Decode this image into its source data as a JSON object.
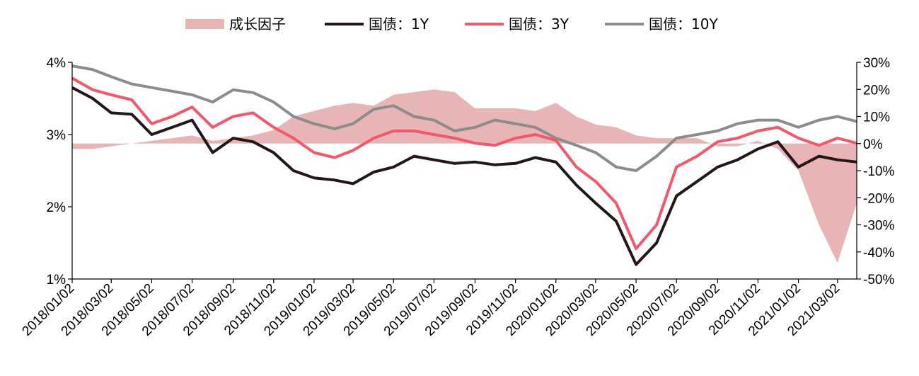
{
  "chart_data": {
    "type": "line",
    "legend": [
      {
        "label": "成长因子",
        "color": "#e7b5b6",
        "kind": "area"
      },
      {
        "label": "国债：1Y",
        "color": "#231815",
        "kind": "line"
      },
      {
        "label": "国债：3Y",
        "color": "#f4576b",
        "kind": "line"
      },
      {
        "label": "国债：10Y",
        "color": "#8c8c8c",
        "kind": "line"
      }
    ],
    "legend_position": "top",
    "grid": false,
    "x_tick_labels": [
      "2018/01/02",
      "2018/03/02",
      "2018/05/02",
      "2018/07/02",
      "2018/09/02",
      "2018/11/02",
      "2019/01/02",
      "2019/03/02",
      "2019/05/02",
      "2019/07/02",
      "2019/09/02",
      "2019/11/02",
      "2020/01/02",
      "2020/03/02",
      "2020/05/02",
      "2020/07/02",
      "2020/09/02",
      "2020/11/02",
      "2021/01/02",
      "2021/03/02"
    ],
    "y_left": {
      "ticks": [
        "1%",
        "2%",
        "3%",
        "4%"
      ],
      "ylim": [
        1,
        4
      ]
    },
    "y_right": {
      "ticks": [
        "-50%",
        "-40%",
        "-30%",
        "-20%",
        "-10%",
        "0%",
        "10%",
        "20%",
        "30%"
      ],
      "ylim": [
        -50,
        30
      ]
    },
    "x": [
      "2018/01/02",
      "2018/02/02",
      "2018/03/02",
      "2018/04/02",
      "2018/05/02",
      "2018/06/02",
      "2018/07/02",
      "2018/08/02",
      "2018/09/02",
      "2018/10/02",
      "2018/11/02",
      "2018/12/02",
      "2019/01/02",
      "2019/02/02",
      "2019/03/02",
      "2019/04/02",
      "2019/05/02",
      "2019/06/02",
      "2019/07/02",
      "2019/08/02",
      "2019/09/02",
      "2019/10/02",
      "2019/11/02",
      "2019/12/02",
      "2020/01/02",
      "2020/02/02",
      "2020/03/02",
      "2020/04/02",
      "2020/05/02",
      "2020/06/02",
      "2020/07/02",
      "2020/08/02",
      "2020/09/02",
      "2020/10/02",
      "2020/11/02",
      "2020/12/02",
      "2021/01/02",
      "2021/02/02",
      "2021/03/02",
      "2021/03/31"
    ],
    "series": [
      {
        "name": "国债：1Y",
        "axis": "left",
        "values": [
          3.65,
          3.5,
          3.3,
          3.28,
          3.0,
          3.1,
          3.2,
          2.75,
          2.95,
          2.9,
          2.75,
          2.5,
          2.4,
          2.37,
          2.32,
          2.48,
          2.55,
          2.7,
          2.65,
          2.6,
          2.62,
          2.58,
          2.6,
          2.68,
          2.62,
          2.3,
          2.05,
          1.8,
          1.2,
          1.5,
          2.15,
          2.35,
          2.55,
          2.65,
          2.8,
          2.9,
          2.55,
          2.7,
          2.65,
          2.62
        ]
      },
      {
        "name": "国债：3Y",
        "axis": "left",
        "values": [
          3.78,
          3.62,
          3.55,
          3.48,
          3.15,
          3.25,
          3.38,
          3.1,
          3.25,
          3.3,
          3.1,
          2.95,
          2.75,
          2.68,
          2.78,
          2.95,
          3.05,
          3.05,
          3.0,
          2.95,
          2.88,
          2.85,
          2.95,
          3.0,
          2.92,
          2.55,
          2.35,
          2.05,
          1.42,
          1.75,
          2.55,
          2.7,
          2.9,
          2.95,
          3.05,
          3.1,
          2.95,
          2.85,
          2.95,
          2.88
        ]
      },
      {
        "name": "国债：10Y",
        "axis": "left",
        "values": [
          3.95,
          3.9,
          3.8,
          3.7,
          3.65,
          3.6,
          3.55,
          3.45,
          3.62,
          3.58,
          3.45,
          3.25,
          3.15,
          3.08,
          3.15,
          3.35,
          3.4,
          3.25,
          3.2,
          3.05,
          3.1,
          3.2,
          3.15,
          3.1,
          2.95,
          2.85,
          2.75,
          2.55,
          2.5,
          2.7,
          2.95,
          3.0,
          3.05,
          3.15,
          3.2,
          3.2,
          3.1,
          3.2,
          3.25,
          3.18
        ]
      },
      {
        "name": "成长因子",
        "axis": "right",
        "values": [
          -2,
          -2,
          -1,
          0,
          1,
          2,
          3,
          1,
          2,
          3,
          5,
          10,
          12,
          14,
          15,
          14,
          18,
          19,
          20,
          19,
          13,
          13,
          13,
          12,
          15,
          10,
          7,
          6,
          3,
          2,
          2,
          2,
          -1,
          -1,
          1,
          -2,
          -10,
          -30,
          -44,
          -22
        ]
      }
    ]
  }
}
